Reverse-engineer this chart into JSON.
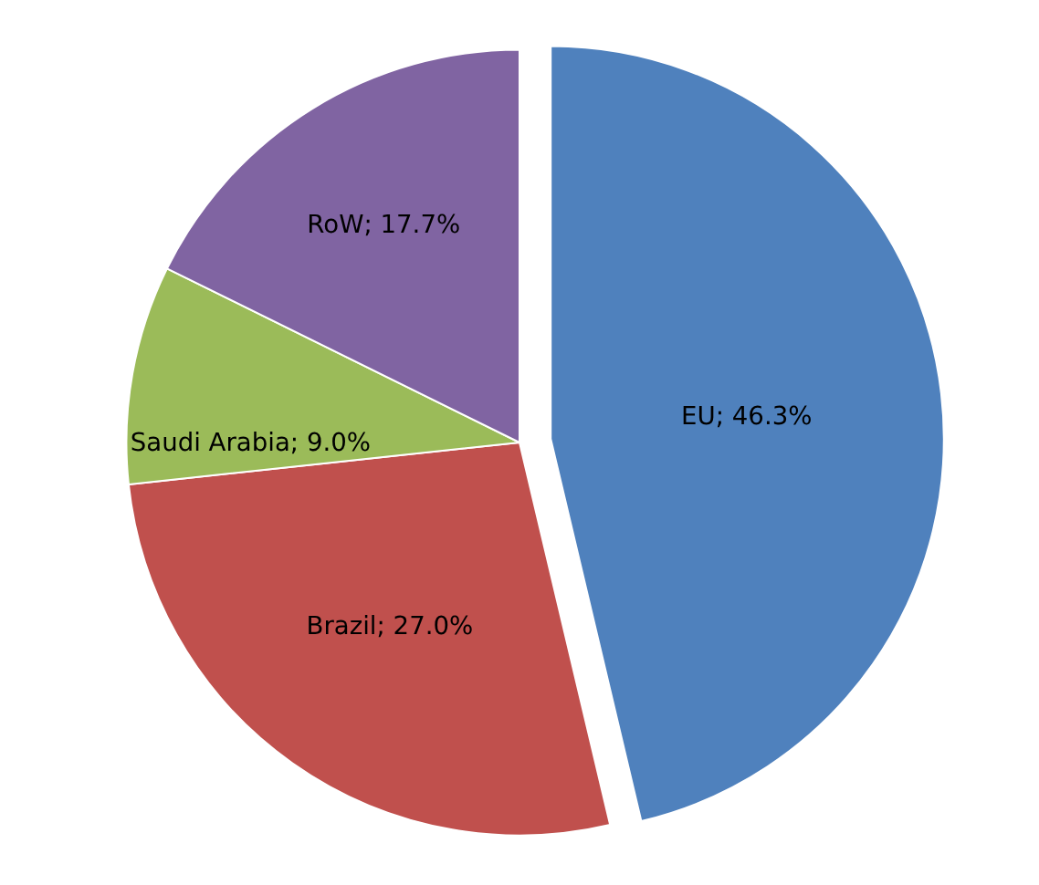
{
  "chart_data": {
    "type": "pie",
    "categories": [
      "EU",
      "Brazil",
      "Saudi Arabia",
      "RoW"
    ],
    "values": [
      46.3,
      27.0,
      9.0,
      17.7
    ],
    "colors": [
      "#4f81bd",
      "#c0504d",
      "#9bbb59",
      "#8064a2"
    ],
    "value_labels": [
      "46.3%",
      "27.0%",
      "9.0%",
      "17.7%"
    ],
    "legend": false
  }
}
